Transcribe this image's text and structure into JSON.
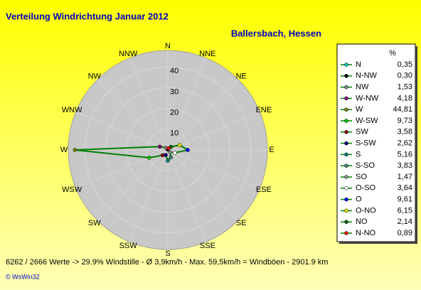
{
  "chart_data": {
    "type": "windrose",
    "title": "Verteilung Windrichtung   Januar 2012",
    "subtitle": "Ballersbach, Hessen",
    "legend_title": "%",
    "footer": "6262 / 2666 Werte  -> 29.9% Windstille   -   Ø 3,9km/h  -  Max. 59,5km/h = Windböen   -   2901.9 km",
    "credit": "© WsWin32",
    "compass_labels": [
      "N",
      "NNE",
      "NE",
      "ENE",
      "E",
      "ESE",
      "SE",
      "SSE",
      "S",
      "SSW",
      "SW",
      "WSW",
      "W",
      "WNW",
      "NW",
      "NNW"
    ],
    "categories": [
      "N",
      "N-NW",
      "NW",
      "W-NW",
      "W",
      "W-SW",
      "SW",
      "S-SW",
      "S",
      "S-SO",
      "SO",
      "O-SO",
      "O",
      "O-NO",
      "NO",
      "N-NO"
    ],
    "values": [
      0.35,
      0.3,
      1.53,
      4.18,
      44.81,
      9.73,
      3.58,
      2.62,
      5.16,
      3.83,
      1.47,
      3.64,
      9.61,
      6.15,
      2.14,
      0.89
    ],
    "value_labels": [
      "0,35",
      "0,30",
      "1,53",
      "4,18",
      "44,81",
      "9,73",
      "3,58",
      "2,62",
      "5,16",
      "3,83",
      "1,47",
      "3,64",
      "9,61",
      "6,15",
      "2,14",
      "0,89"
    ],
    "colors": [
      "#00c0c0",
      "#000000",
      "#808080",
      "#800080",
      "#808000",
      "#00c000",
      "#800000",
      "#000080",
      "#008080",
      "#408080",
      "#909090",
      "#ffffff",
      "#0000ff",
      "#e0e000",
      "#006000",
      "#ff0000"
    ],
    "line_color": "#008000",
    "rlim": [
      0,
      48
    ],
    "rticks": [
      10,
      20,
      30,
      40
    ],
    "grid": true
  }
}
